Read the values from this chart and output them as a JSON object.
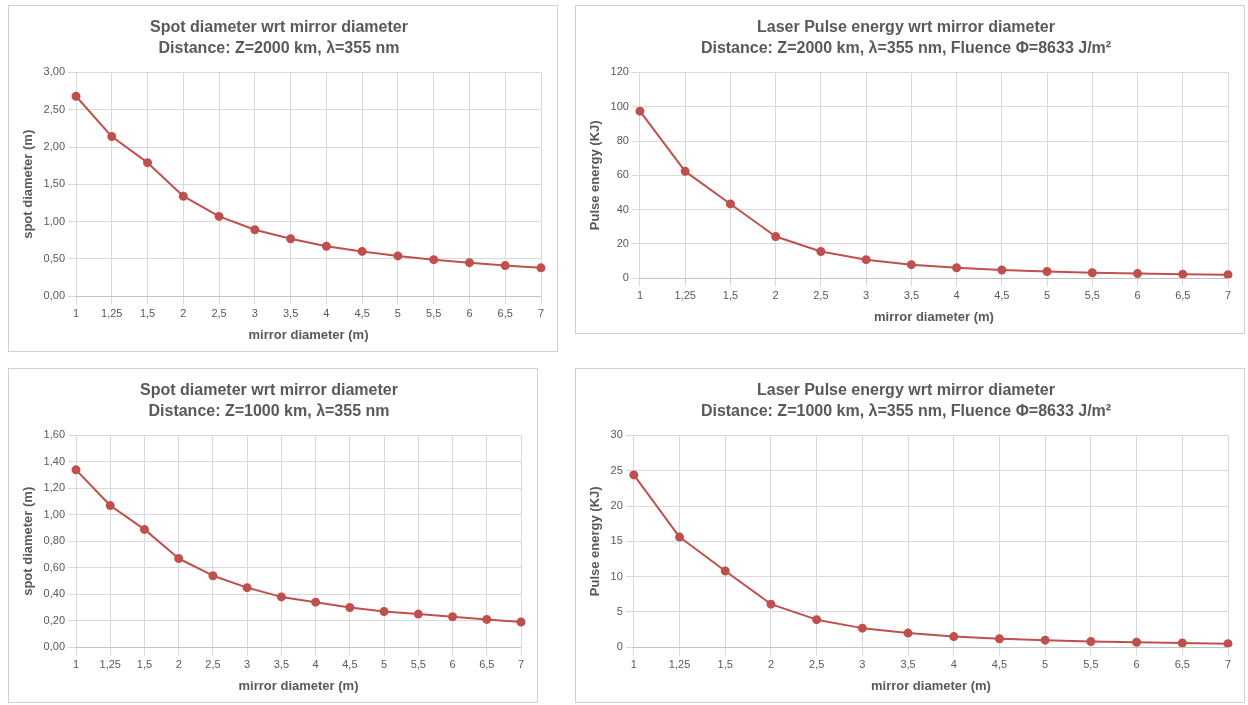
{
  "chart_data": [
    {
      "type": "line",
      "title": "Spot diameter wrt mirror diameter",
      "subtitle": "Distance: Z=2000 km, λ=355 nm",
      "xlabel": "mirror diameter (m)",
      "ylabel": "spot diameter (m)",
      "categories": [
        "1",
        "1,25",
        "1,5",
        "2",
        "2,5",
        "3",
        "3,5",
        "4",
        "4,5",
        "5",
        "5,5",
        "6",
        "6,5",
        "7"
      ],
      "series": [
        {
          "color": "#c0504d",
          "values": [
            2.68,
            2.14,
            1.79,
            1.34,
            1.07,
            0.89,
            0.77,
            0.67,
            0.6,
            0.54,
            0.49,
            0.45,
            0.41,
            0.38
          ]
        }
      ],
      "ylim": [
        0,
        3
      ],
      "yticks": [
        {
          "value": 0,
          "label": "0,00"
        },
        {
          "value": 0.5,
          "label": "0,50"
        },
        {
          "value": 1,
          "label": "1,00"
        },
        {
          "value": 1.5,
          "label": "1,50"
        },
        {
          "value": 2,
          "label": "2,00"
        },
        {
          "value": 2.5,
          "label": "2,50"
        },
        {
          "value": 3,
          "label": "3,00"
        }
      ],
      "grid": true,
      "marker": "circle",
      "line_style": "solid"
    },
    {
      "type": "line",
      "title": "Laser Pulse energy wrt mirror diameter",
      "subtitle": "Distance: Z=2000 km, λ=355 nm, Fluence Φ=8633 J/m²",
      "xlabel": "mirror diameter (m)",
      "ylabel": "Pulse energy (KJ)",
      "categories": [
        "1",
        "1,25",
        "1,5",
        "2",
        "2,5",
        "3",
        "3,5",
        "4",
        "4,5",
        "5",
        "5,5",
        "6",
        "6,5",
        "7"
      ],
      "series": [
        {
          "color": "#c0504d",
          "values": [
            97.4,
            62.3,
            43.3,
            24.3,
            15.6,
            10.8,
            7.9,
            6.1,
            4.8,
            3.9,
            3.2,
            2.7,
            2.3,
            2
          ]
        }
      ],
      "ylim": [
        0,
        120
      ],
      "yticks": [
        0,
        20,
        40,
        60,
        80,
        100,
        120
      ],
      "grid": true,
      "marker": "circle",
      "line_style": "solid"
    },
    {
      "type": "line",
      "title": "Spot diameter wrt mirror diameter",
      "subtitle": "Distance: Z=1000 km, λ=355 nm",
      "xlabel": "mirror diameter (m)",
      "ylabel": "spot diameter (m)",
      "categories": [
        "1",
        "1,25",
        "1,5",
        "2",
        "2,5",
        "3",
        "3,5",
        "4",
        "4,5",
        "5",
        "5,5",
        "6",
        "6,5",
        "7"
      ],
      "series": [
        {
          "color": "#c0504d",
          "values": [
            1.34,
            1.07,
            0.89,
            0.67,
            0.54,
            0.45,
            0.38,
            0.34,
            0.3,
            0.27,
            0.25,
            0.23,
            0.21,
            0.19
          ]
        }
      ],
      "ylim": [
        0,
        1.6
      ],
      "yticks": [
        {
          "value": 0,
          "label": "0,00"
        },
        {
          "value": 0.2,
          "label": "0,20"
        },
        {
          "value": 0.4,
          "label": "0,40"
        },
        {
          "value": 0.6,
          "label": "0,60"
        },
        {
          "value": 0.8,
          "label": "0,80"
        },
        {
          "value": 1,
          "label": "1,00"
        },
        {
          "value": 1.2,
          "label": "1,20"
        },
        {
          "value": 1.4,
          "label": "1,40"
        },
        {
          "value": 1.6,
          "label": "1,60"
        }
      ],
      "grid": true,
      "marker": "circle",
      "line_style": "solid"
    },
    {
      "type": "line",
      "title": "Laser Pulse energy wrt mirror diameter",
      "subtitle": "Distance: Z=1000 km, λ=355 nm, Fluence Φ=8633 J/m²",
      "xlabel": "mirror diameter (m)",
      "ylabel": "Pulse energy (KJ)",
      "categories": [
        "1",
        "1,25",
        "1,5",
        "2",
        "2,5",
        "3",
        "3,5",
        "4",
        "4,5",
        "5",
        "5,5",
        "6",
        "6,5",
        "7"
      ],
      "series": [
        {
          "color": "#c0504d",
          "values": [
            24.4,
            15.6,
            10.8,
            6.1,
            3.9,
            2.7,
            2,
            1.5,
            1.2,
            1,
            0.8,
            0.7,
            0.6,
            0.5
          ]
        }
      ],
      "ylim": [
        0,
        30
      ],
      "yticks": [
        0,
        5,
        10,
        15,
        20,
        25,
        30
      ],
      "grid": true,
      "marker": "circle",
      "line_style": "solid"
    }
  ]
}
